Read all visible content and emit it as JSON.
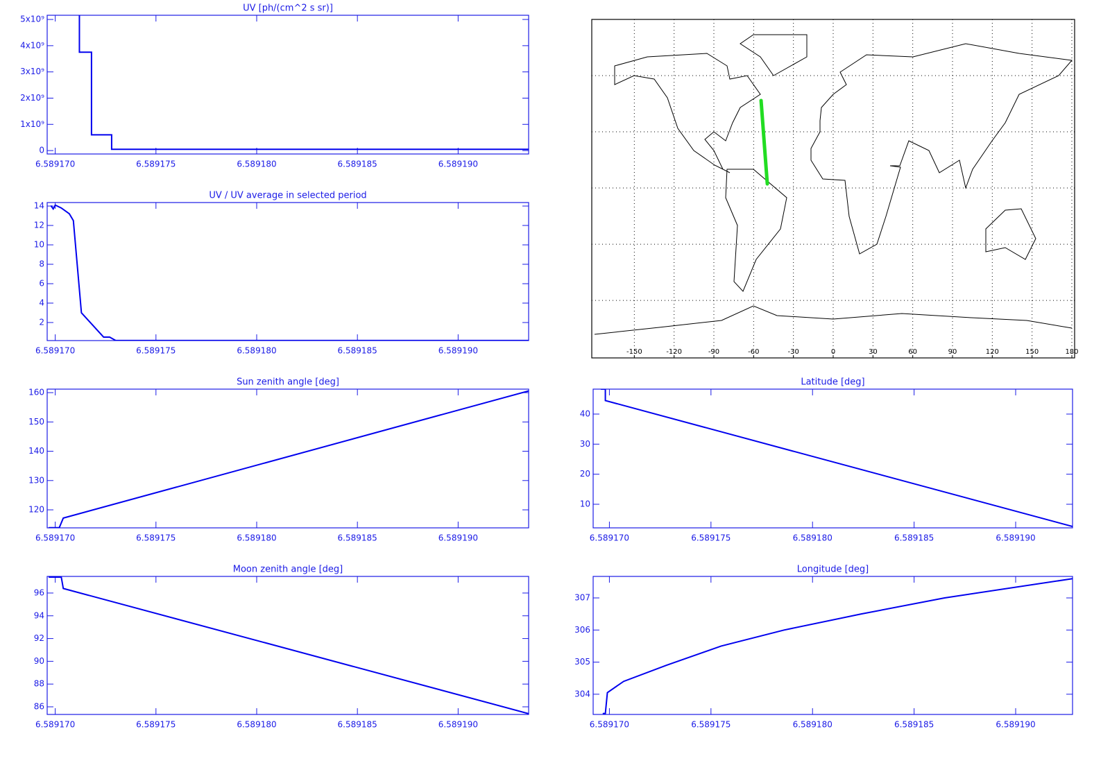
{
  "chart_data": [
    {
      "type": "line",
      "title": "UV [ph/(cm^2 s sr)]",
      "color": "#0000ee",
      "x": [
        6.5891712,
        6.5891712,
        6.5891718,
        6.5891718,
        6.5891728,
        6.5891728,
        6.5891935
      ],
      "values": [
        5160000000,
        3750000000,
        3750000000,
        600000000,
        600000000,
        50000000,
        50000000
      ],
      "xlim": [
        6.5891696,
        6.5891935
      ],
      "ylim": [
        -130000000,
        5160000000
      ],
      "xticks": [
        {
          "value": 6.58917,
          "label": "6.589170"
        },
        6.589175,
        {
          "value": 6.58918,
          "label": "6.589180"
        },
        6.589185,
        {
          "value": 6.58919,
          "label": "6.589190"
        }
      ],
      "yticks": [
        0,
        {
          "value": 1000000000,
          "label": "1x10⁹"
        },
        {
          "value": 2000000000,
          "label": "2x10⁹"
        },
        {
          "value": 3000000000,
          "label": "3x10⁹"
        },
        {
          "value": 4000000000,
          "label": "4x10⁹"
        },
        {
          "value": 5000000000,
          "label": "5x10⁹"
        }
      ]
    },
    {
      "type": "line",
      "title": "UV / UV average in selected period",
      "color": "#0000ee",
      "x": [
        6.5891698,
        6.5891699,
        6.58917,
        6.5891703,
        6.5891707,
        6.5891709,
        6.5891713,
        6.5891724,
        6.5891727,
        6.589173,
        6.5891935
      ],
      "values": [
        14.0,
        13.7,
        14.1,
        13.8,
        13.2,
        12.5,
        3.0,
        0.5,
        0.5,
        0.15,
        0.15
      ],
      "xlim": [
        6.5891696,
        6.5891935
      ],
      "ylim": [
        0.14,
        14.36
      ],
      "xticks": [
        {
          "value": 6.58917,
          "label": "6.589170"
        },
        6.589175,
        {
          "value": 6.58918,
          "label": "6.589180"
        },
        6.589185,
        {
          "value": 6.58919,
          "label": "6.589190"
        }
      ],
      "yticks": [
        2,
        4,
        6,
        8,
        10,
        12,
        14
      ]
    },
    {
      "type": "line",
      "title": "Sun zenith angle [deg]",
      "color": "#0000ee",
      "x": [
        6.5891697,
        6.5891702,
        6.5891704,
        6.5891935
      ],
      "values": [
        113.9,
        113.9,
        117.2,
        160.6
      ],
      "xlim": [
        6.5891696,
        6.5891935
      ],
      "ylim": [
        113.85,
        161.2
      ],
      "xticks": [
        {
          "value": 6.58917,
          "label": "6.589170"
        },
        6.589175,
        {
          "value": 6.58918,
          "label": "6.589180"
        },
        6.589185,
        {
          "value": 6.58919,
          "label": "6.589190"
        }
      ],
      "yticks": [
        120,
        130,
        140,
        150,
        160
      ]
    },
    {
      "type": "line",
      "title": "Moon zenith angle [deg]",
      "color": "#0000ee",
      "x": [
        6.5891697,
        6.5891703,
        6.5891704,
        6.5891935
      ],
      "values": [
        97.4,
        97.4,
        96.4,
        85.4
      ],
      "xlim": [
        6.5891696,
        6.5891935
      ],
      "ylim": [
        85.33,
        97.46
      ],
      "xticks": [
        {
          "value": 6.58917,
          "label": "6.589170"
        },
        6.589175,
        {
          "value": 6.58918,
          "label": "6.589180"
        },
        6.589185,
        {
          "value": 6.58919,
          "label": "6.589190"
        }
      ],
      "yticks": [
        86,
        88,
        90,
        92,
        94,
        96
      ]
    },
    {
      "type": "map",
      "color": "#22dd22",
      "x": [
        -54.4,
        -49.7
      ],
      "values": [
        46.7,
        2.2
      ],
      "xlim": [
        -182.1,
        182.1
      ],
      "ylim": [
        -90.7,
        90
      ],
      "xticks": [
        -150,
        -120,
        -90,
        -60,
        -30,
        0,
        30,
        60,
        90,
        120,
        150,
        180
      ],
      "yticks": [
        -60,
        -30,
        0,
        30,
        60
      ]
    },
    {
      "type": "line",
      "title": "Latitude [deg]",
      "color": "#0000ee",
      "x": [
        6.5891696,
        6.5891698,
        6.5891698,
        6.5891928
      ],
      "values": [
        48.3,
        48.3,
        44.5,
        2.6
      ],
      "xlim": [
        6.5891692,
        6.5891928
      ],
      "ylim": [
        2.15,
        48.3
      ],
      "xticks": [
        {
          "value": 6.58917,
          "label": "6.589170"
        },
        6.589175,
        {
          "value": 6.58918,
          "label": "6.589180"
        },
        6.589185,
        {
          "value": 6.58919,
          "label": "6.589190"
        }
      ],
      "yticks": [
        10,
        20,
        30,
        40
      ]
    },
    {
      "type": "line",
      "title": "Longitude [deg]",
      "color": "#0000ee",
      "x": [
        6.5891697,
        6.5891698,
        6.5891699,
        6.5891707,
        6.5891728,
        6.5891755,
        6.5891786,
        6.5891824,
        6.5891865,
        6.5891928
      ],
      "values": [
        303.4,
        303.4,
        304.05,
        304.4,
        304.9,
        305.5,
        306.0,
        306.5,
        307.0,
        307.6
      ],
      "xlim": [
        6.5891692,
        6.5891928
      ],
      "ylim": [
        303.37,
        307.67
      ],
      "xticks": [
        {
          "value": 6.58917,
          "label": "6.589170"
        },
        6.589175,
        {
          "value": 6.58918,
          "label": "6.589180"
        },
        6.589185,
        {
          "value": 6.58919,
          "label": "6.589190"
        }
      ],
      "yticks": [
        304,
        305,
        306,
        307
      ]
    }
  ]
}
